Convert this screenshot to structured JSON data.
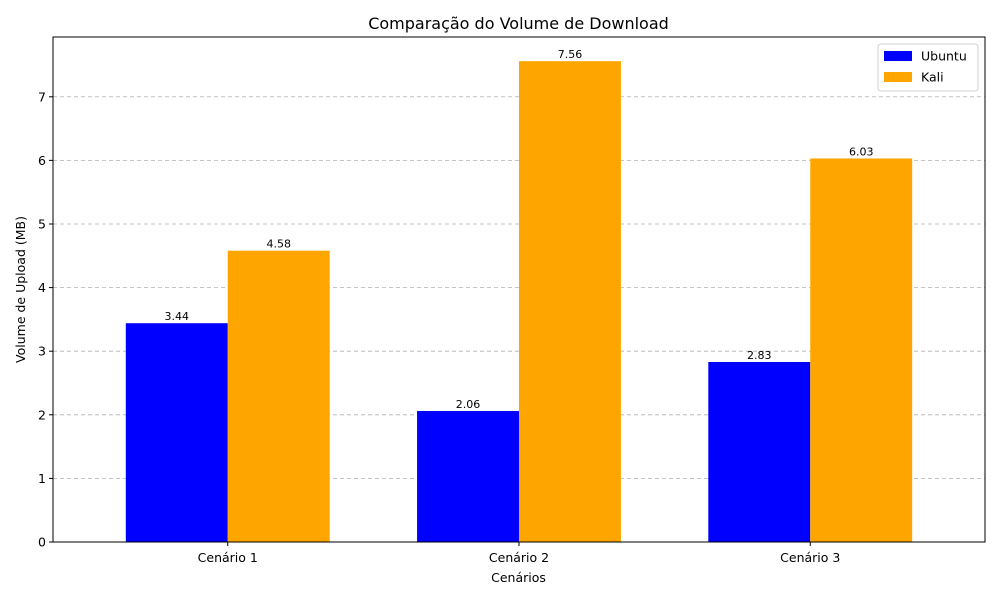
{
  "chart_data": {
    "type": "bar",
    "title": "Comparação do Volume de Download",
    "xlabel": "Cenários",
    "ylabel": "Volume de Upload (MB)",
    "categories": [
      "Cenário 1",
      "Cenário 2",
      "Cenário 3"
    ],
    "series": [
      {
        "name": "Ubuntu",
        "values": [
          3.44,
          2.06,
          2.83
        ],
        "color": "#0000ff"
      },
      {
        "name": "Kali",
        "values": [
          4.58,
          7.56,
          6.03
        ],
        "color": "#ffa500"
      }
    ],
    "ylim": [
      0,
      7.94
    ],
    "yticks": [
      0,
      1,
      2,
      3,
      4,
      5,
      6,
      7
    ],
    "grid": "y-dashed",
    "legend_position": "top-right"
  }
}
